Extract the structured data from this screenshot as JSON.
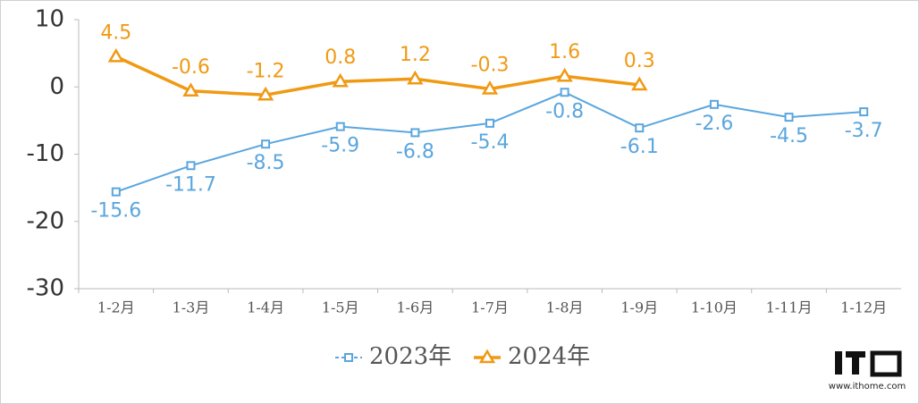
{
  "chart_data": {
    "type": "line",
    "categories": [
      "1-2月",
      "1-3月",
      "1-4月",
      "1-5月",
      "1-6月",
      "1-7月",
      "1-8月",
      "1-9月",
      "1-10月",
      "1-11月",
      "1-12月"
    ],
    "series": [
      {
        "name": "2023年",
        "color": "#5aa6de",
        "marker": "square",
        "values": [
          -15.6,
          -11.7,
          -8.5,
          -5.9,
          -6.8,
          -5.4,
          -0.8,
          -6.1,
          -2.6,
          -4.5,
          -3.7
        ]
      },
      {
        "name": "2024年",
        "color": "#f09a14",
        "marker": "triangle",
        "values": [
          4.5,
          -0.6,
          -1.2,
          0.8,
          1.2,
          -0.3,
          1.6,
          0.3,
          null,
          null,
          null
        ]
      }
    ],
    "ylim": [
      -30,
      10
    ],
    "yticks": [
      -30,
      -20,
      -10,
      0,
      10
    ],
    "grid": false,
    "legend": "bottom",
    "watermark": "www.ithome.com"
  }
}
